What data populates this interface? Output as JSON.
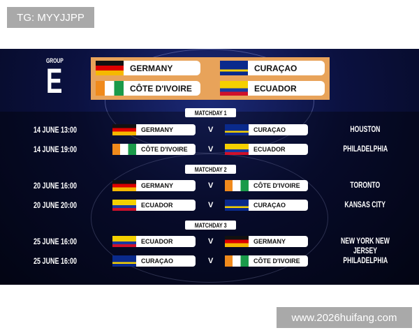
{
  "watermarks": {
    "top_left": "TG: MYYJJPP",
    "bottom_right": "www.2026huifang.com"
  },
  "group": {
    "label": "GROUP",
    "letter": "E",
    "teams": [
      {
        "name": "GERMANY",
        "flag": "de"
      },
      {
        "name": "CURAÇAO",
        "flag": "cw"
      },
      {
        "name": "CÔTE D'IVOIRE",
        "flag": "ci"
      },
      {
        "name": "ECUADOR",
        "flag": "ec"
      }
    ]
  },
  "matchdays": [
    {
      "label": "MATCHDAY 1",
      "matches": [
        {
          "date": "14 JUNE  13:00",
          "home": "GERMANY",
          "away": "CURAÇAO",
          "city": "HOUSTON"
        },
        {
          "date": "14 JUNE  19:00",
          "home": "CÔTE D'IVOIRE",
          "away": "ECUADOR",
          "city": "PHILADELPHIA"
        }
      ]
    },
    {
      "label": "MATCHDAY 2",
      "matches": [
        {
          "date": "20 JUNE  16:00",
          "home": "GERMANY",
          "away": "CÔTE D'IVOIRE",
          "city": "TORONTO"
        },
        {
          "date": "20 JUNE  20:00",
          "home": "ECUADOR",
          "away": "CURAÇAO",
          "city": "KANSAS CITY"
        }
      ]
    },
    {
      "label": "MATCHDAY 3",
      "matches": [
        {
          "date": "25 JUNE  16:00",
          "home": "ECUADOR",
          "away": "GERMANY",
          "city": "NEW YORK NEW JERSEY"
        },
        {
          "date": "25 JUNE  16:00",
          "home": "CURAÇAO",
          "away": "CÔTE D'IVOIRE",
          "city": "PHILADELPHIA"
        }
      ]
    }
  ],
  "vs": "V",
  "colors": {
    "background": "#0b1140",
    "group_box": "#e8a35a"
  }
}
